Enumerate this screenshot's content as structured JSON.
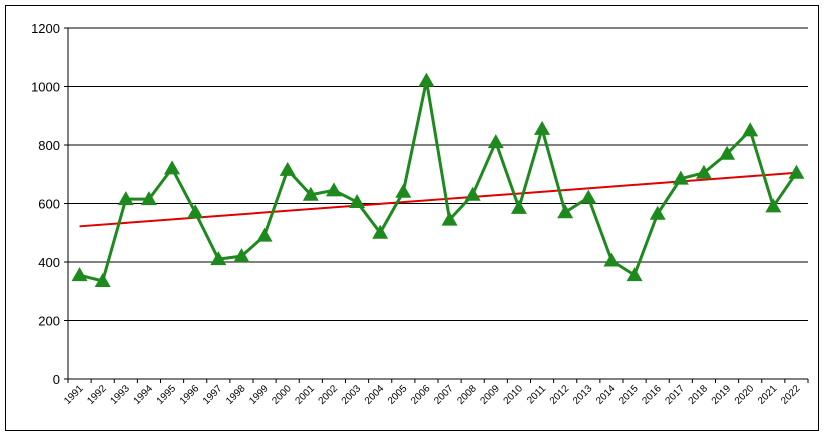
{
  "chart_data": {
    "type": "line",
    "categories": [
      "1991",
      "1992",
      "1993",
      "1994",
      "1995",
      "1996",
      "1997",
      "1998",
      "1999",
      "2000",
      "2001",
      "2002",
      "2003",
      "2004",
      "2005",
      "2006",
      "2007",
      "2008",
      "2009",
      "2010",
      "2011",
      "2012",
      "2013",
      "2014",
      "2015",
      "2016",
      "2017",
      "2018",
      "2019",
      "2020",
      "2021",
      "2022"
    ],
    "series": [
      {
        "color": "#1e8a1e",
        "values": [
          355,
          335,
          615,
          615,
          720,
          570,
          410,
          420,
          490,
          715,
          630,
          645,
          605,
          500,
          640,
          1020,
          545,
          630,
          810,
          585,
          855,
          570,
          620,
          405,
          355,
          565,
          685,
          705,
          770,
          850,
          590,
          705
        ]
      }
    ],
    "trendline": {
      "color": "#e00000",
      "values": [
        522,
        705
      ]
    },
    "ylim": [
      0,
      1200
    ],
    "yticks": [
      0,
      200,
      400,
      600,
      800,
      1000,
      1200
    ],
    "grid": true
  }
}
